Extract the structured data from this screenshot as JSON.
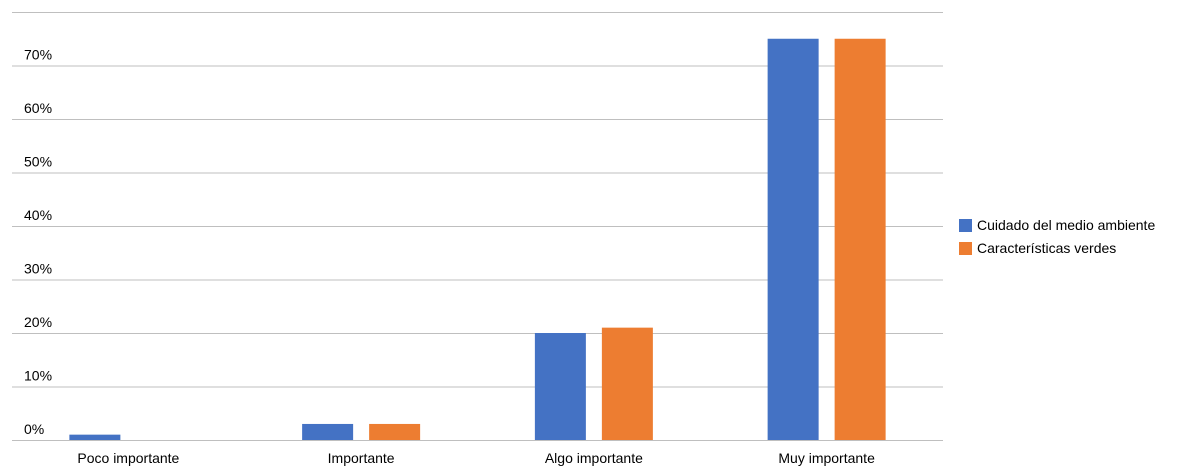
{
  "chart_data": {
    "type": "bar",
    "categories": [
      "Poco importante",
      "Importante",
      "Algo importante",
      "Muy importante"
    ],
    "series": [
      {
        "name": "Cuidado del medio ambiente",
        "color": "#4472C4",
        "values": [
          1,
          3,
          20,
          75
        ]
      },
      {
        "name": "Características verdes",
        "color": "#ED7D31",
        "values": [
          0,
          3,
          21,
          75
        ]
      }
    ],
    "y_ticks": [
      "0%",
      "10%",
      "20%",
      "30%",
      "40%",
      "50%",
      "60%",
      "70%"
    ],
    "ylim": [
      0,
      80
    ],
    "y_unit": "%",
    "grid": true,
    "legend_position": "right"
  }
}
